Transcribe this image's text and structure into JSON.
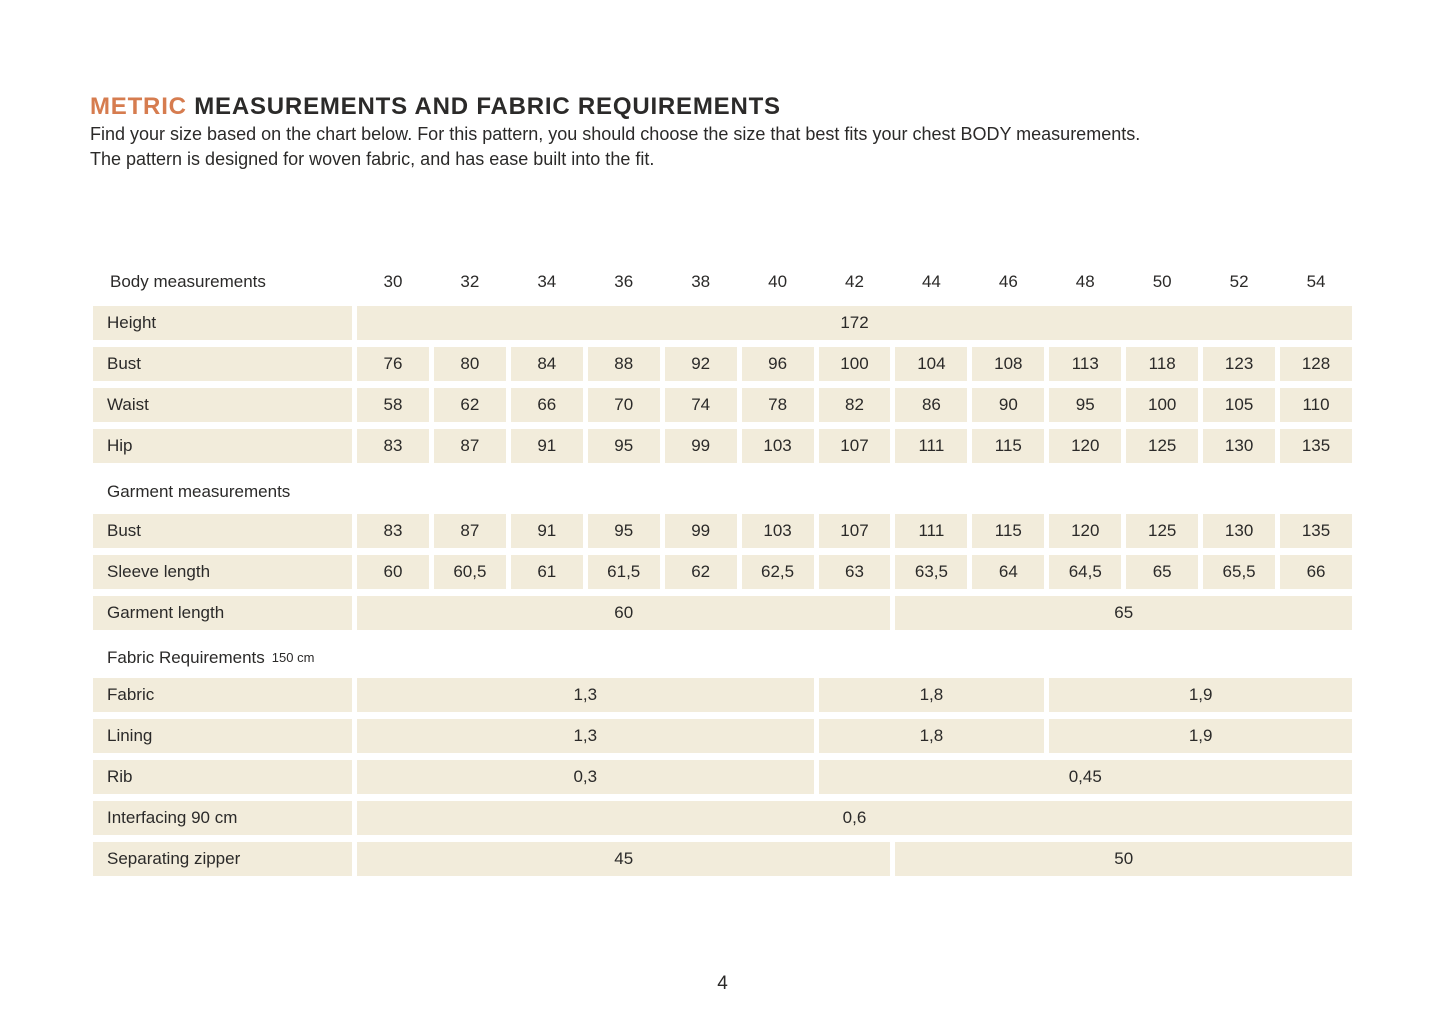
{
  "colors": {
    "accent": "#d67c4f",
    "cell_bg": "#f2ecdb",
    "text": "#2b2a29"
  },
  "header": {
    "title_highlight": "METRIC",
    "title_rest": "MEASUREMENTS AND FABRIC REQUIREMENTS",
    "intro_line1": "Find your size based on the chart below. For this pattern, you should choose the size that best fits your chest BODY measurements.",
    "intro_line2": "The pattern is designed for woven fabric, and has ease built into the fit."
  },
  "table": {
    "header": {
      "label": "Body measurements",
      "sizes": [
        "30",
        "32",
        "34",
        "36",
        "38",
        "40",
        "42",
        "44",
        "46",
        "48",
        "50",
        "52",
        "54"
      ]
    },
    "sections": [
      {
        "rows": [
          {
            "label": "Height",
            "spans": [
              {
                "value": "172",
                "cols": 13
              }
            ]
          },
          {
            "label": "Bust",
            "cells": [
              "76",
              "80",
              "84",
              "88",
              "92",
              "96",
              "100",
              "104",
              "108",
              "113",
              "118",
              "123",
              "128"
            ]
          },
          {
            "label": "Waist",
            "cells": [
              "58",
              "62",
              "66",
              "70",
              "74",
              "78",
              "82",
              "86",
              "90",
              "95",
              "100",
              "105",
              "110"
            ]
          },
          {
            "label": "Hip",
            "cells": [
              "83",
              "87",
              "91",
              "95",
              "99",
              "103",
              "107",
              "111",
              "115",
              "120",
              "125",
              "130",
              "135"
            ]
          }
        ]
      },
      {
        "title": "Garment measurements",
        "rows": [
          {
            "label": "Bust",
            "cells": [
              "83",
              "87",
              "91",
              "95",
              "99",
              "103",
              "107",
              "111",
              "115",
              "120",
              "125",
              "130",
              "135"
            ]
          },
          {
            "label": "Sleeve length",
            "cells": [
              "60",
              "60,5",
              "61",
              "61,5",
              "62",
              "62,5",
              "63",
              "63,5",
              "64",
              "64,5",
              "65",
              "65,5",
              "66"
            ]
          },
          {
            "label": "Garment length",
            "spans": [
              {
                "value": "60",
                "cols": 7
              },
              {
                "value": "65",
                "cols": 6
              }
            ]
          }
        ]
      },
      {
        "title": "Fabric Requirements",
        "subtitle": "150 cm",
        "rows": [
          {
            "label": "Fabric",
            "spans": [
              {
                "value": "1,3",
                "cols": 6
              },
              {
                "value": "1,8",
                "cols": 3
              },
              {
                "value": "1,9",
                "cols": 4
              }
            ]
          },
          {
            "label": "Lining",
            "spans": [
              {
                "value": "1,3",
                "cols": 6
              },
              {
                "value": "1,8",
                "cols": 3
              },
              {
                "value": "1,9",
                "cols": 4
              }
            ]
          },
          {
            "label": "Rib",
            "spans": [
              {
                "value": "0,3",
                "cols": 6
              },
              {
                "value": "0,45",
                "cols": 7
              }
            ]
          },
          {
            "label": "Interfacing 90 cm",
            "spans": [
              {
                "value": "0,6",
                "cols": 13
              }
            ]
          },
          {
            "label": "Separating zipper",
            "spans": [
              {
                "value": "45",
                "cols": 7
              },
              {
                "value": "50",
                "cols": 6
              }
            ]
          }
        ]
      }
    ]
  },
  "footer": {
    "page_number": "4"
  }
}
